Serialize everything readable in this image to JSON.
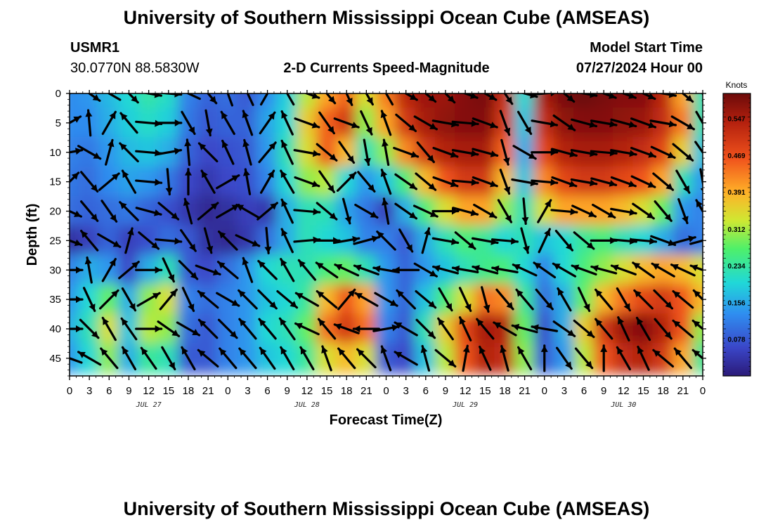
{
  "header": {
    "title": "University of Southern Mississippi Ocean Cube (AMSEAS)",
    "station": "USMR1",
    "coords": "30.0770N  88.5830W",
    "subtitle": "2-D Currents Speed-Magnitude",
    "model_start_label": "Model Start Time",
    "model_start_value": "07/27/2024 Hour 00"
  },
  "footer": {
    "title": "University of Southern Mississippi Ocean Cube (AMSEAS)"
  },
  "chart_data": {
    "type": "heatmap",
    "title": "2-D Currents Speed-Magnitude",
    "xlabel": "Forecast Time(Z)",
    "ylabel": "Depth (ft)",
    "x_tick_labels": [
      "0",
      "3",
      "6",
      "9",
      "12",
      "15",
      "18",
      "21",
      "0",
      "3",
      "6",
      "9",
      "12",
      "15",
      "18",
      "21",
      "0",
      "3",
      "6",
      "9",
      "12",
      "15",
      "18",
      "21",
      "0",
      "3",
      "6",
      "9",
      "12",
      "15",
      "18",
      "21",
      "0"
    ],
    "date_labels": [
      {
        "label": "JUL 27",
        "hour": 12
      },
      {
        "label": "JUL 28",
        "hour": 36
      },
      {
        "label": "JUL 29",
        "hour": 60
      },
      {
        "label": "JUL 30",
        "hour": 84
      }
    ],
    "x_range_hours": [
      0,
      96
    ],
    "y_ticks": [
      "0",
      "5",
      "10",
      "15",
      "20",
      "25",
      "30",
      "35",
      "40",
      "45"
    ],
    "y_range_ft": [
      0,
      48
    ],
    "colorbar": {
      "unit": "Knots",
      "tick_labels": [
        "0.547",
        "0.469",
        "0.391",
        "0.312",
        "0.234",
        "0.156",
        "0.078"
      ],
      "min": 0.0,
      "max": 0.6
    },
    "speed_grid": {
      "hours": [
        0,
        3,
        6,
        9,
        12,
        15,
        18,
        21,
        24,
        27,
        30,
        33,
        36,
        39,
        42,
        45,
        48,
        51,
        54,
        57,
        60,
        63,
        66,
        69,
        72,
        75,
        78,
        81,
        84,
        87,
        90,
        93,
        96
      ],
      "depths_ft": [
        0,
        5,
        10,
        15,
        20,
        25,
        30,
        35,
        40,
        45
      ],
      "values": [
        [
          0.13,
          0.14,
          0.17,
          0.2,
          0.23,
          0.21,
          0.12,
          0.09,
          0.1,
          0.08,
          0.13,
          0.19,
          0.32,
          0.4,
          0.45,
          0.34,
          0.43,
          0.53,
          0.56,
          0.56,
          0.58,
          0.59,
          0.52,
          0.2,
          0.55,
          0.59,
          0.6,
          0.59,
          0.58,
          0.58,
          0.53,
          0.4,
          0.22
        ],
        [
          0.13,
          0.13,
          0.16,
          0.19,
          0.21,
          0.19,
          0.11,
          0.08,
          0.09,
          0.09,
          0.15,
          0.2,
          0.36,
          0.45,
          0.5,
          0.3,
          0.4,
          0.5,
          0.55,
          0.57,
          0.58,
          0.58,
          0.5,
          0.18,
          0.52,
          0.57,
          0.58,
          0.58,
          0.57,
          0.56,
          0.52,
          0.43,
          0.22
        ],
        [
          0.12,
          0.11,
          0.14,
          0.17,
          0.18,
          0.16,
          0.09,
          0.06,
          0.07,
          0.08,
          0.14,
          0.22,
          0.34,
          0.46,
          0.38,
          0.22,
          0.3,
          0.42,
          0.5,
          0.54,
          0.55,
          0.55,
          0.45,
          0.16,
          0.48,
          0.54,
          0.55,
          0.55,
          0.54,
          0.52,
          0.48,
          0.36,
          0.18
        ],
        [
          0.11,
          0.1,
          0.13,
          0.15,
          0.14,
          0.11,
          0.06,
          0.04,
          0.06,
          0.07,
          0.12,
          0.2,
          0.3,
          0.32,
          0.2,
          0.14,
          0.18,
          0.26,
          0.38,
          0.46,
          0.5,
          0.5,
          0.38,
          0.18,
          0.42,
          0.48,
          0.5,
          0.5,
          0.48,
          0.46,
          0.4,
          0.22,
          0.14
        ],
        [
          0.1,
          0.09,
          0.1,
          0.11,
          0.09,
          0.07,
          0.04,
          0.02,
          0.03,
          0.05,
          0.04,
          0.16,
          0.22,
          0.22,
          0.15,
          0.11,
          0.05,
          0.16,
          0.26,
          0.34,
          0.4,
          0.4,
          0.3,
          0.22,
          0.34,
          0.4,
          0.4,
          0.4,
          0.38,
          0.34,
          0.28,
          0.14,
          0.12
        ],
        [
          0.03,
          0.05,
          0.09,
          0.05,
          0.07,
          0.1,
          0.08,
          0.03,
          0.02,
          0.04,
          0.1,
          0.16,
          0.22,
          0.2,
          0.18,
          0.12,
          0.12,
          0.08,
          0.16,
          0.22,
          0.26,
          0.24,
          0.2,
          0.22,
          0.18,
          0.2,
          0.24,
          0.26,
          0.22,
          0.2,
          0.16,
          0.1,
          0.12
        ],
        [
          0.12,
          0.16,
          0.14,
          0.06,
          0.16,
          0.22,
          0.08,
          0.06,
          0.1,
          0.14,
          0.2,
          0.22,
          0.22,
          0.26,
          0.28,
          0.22,
          0.14,
          0.09,
          0.14,
          0.18,
          0.22,
          0.25,
          0.26,
          0.2,
          0.12,
          0.2,
          0.26,
          0.3,
          0.34,
          0.38,
          0.4,
          0.38,
          0.34
        ],
        [
          0.14,
          0.2,
          0.28,
          0.16,
          0.3,
          0.34,
          0.12,
          0.1,
          0.12,
          0.14,
          0.18,
          0.2,
          0.24,
          0.38,
          0.46,
          0.4,
          0.14,
          0.09,
          0.18,
          0.26,
          0.34,
          0.44,
          0.42,
          0.24,
          0.1,
          0.16,
          0.28,
          0.38,
          0.44,
          0.48,
          0.5,
          0.46,
          0.38
        ],
        [
          0.16,
          0.22,
          0.34,
          0.18,
          0.32,
          0.3,
          0.1,
          0.08,
          0.12,
          0.14,
          0.2,
          0.22,
          0.28,
          0.44,
          0.5,
          0.44,
          0.12,
          0.08,
          0.22,
          0.36,
          0.48,
          0.55,
          0.54,
          0.28,
          0.07,
          0.16,
          0.36,
          0.5,
          0.56,
          0.58,
          0.54,
          0.46,
          0.3
        ],
        [
          0.14,
          0.2,
          0.3,
          0.16,
          0.24,
          0.22,
          0.08,
          0.08,
          0.12,
          0.14,
          0.18,
          0.2,
          0.24,
          0.34,
          0.38,
          0.34,
          0.08,
          0.06,
          0.18,
          0.32,
          0.46,
          0.54,
          0.52,
          0.3,
          0.08,
          0.14,
          0.32,
          0.46,
          0.52,
          0.54,
          0.5,
          0.4,
          0.24
        ]
      ]
    },
    "arrow_directions_deg": [
      [
        25,
        125,
        -60,
        135,
        100,
        95,
        -65,
        140,
        340,
        -25,
        30,
        -30,
        110,
        140,
        155,
        150,
        -30,
        120,
        130,
        135,
        110,
        120,
        145,
        105,
        85,
        130,
        100,
        110,
        110,
        115,
        100,
        130,
        160
      ],
      [
        60,
        -5,
        30,
        -40,
        95,
        90,
        150,
        170,
        -30,
        -20,
        35,
        -25,
        110,
        145,
        110,
        155,
        -20,
        130,
        120,
        100,
        95,
        110,
        160,
        150,
        100,
        125,
        105,
        100,
        105,
        110,
        100,
        120,
        150
      ],
      [
        80,
        120,
        15,
        -45,
        95,
        80,
        -5,
        -45,
        -25,
        -15,
        40,
        -25,
        100,
        130,
        145,
        170,
        -10,
        110,
        140,
        110,
        100,
        105,
        165,
        120,
        90,
        105,
        100,
        95,
        100,
        110,
        115,
        130,
        145
      ],
      [
        45,
        140,
        50,
        -30,
        95,
        175,
        0,
        -30,
        60,
        -10,
        30,
        -30,
        110,
        145,
        45,
        140,
        -20,
        125,
        130,
        110,
        95,
        110,
        160,
        100,
        95,
        110,
        100,
        105,
        110,
        115,
        130,
        150,
        170
      ],
      [
        115,
        140,
        145,
        -45,
        105,
        130,
        -15,
        50,
        60,
        -60,
        50,
        -25,
        95,
        130,
        165,
        120,
        -10,
        125,
        115,
        90,
        105,
        120,
        150,
        175,
        30,
        95,
        115,
        120,
        100,
        125,
        140,
        160,
        -30
      ],
      [
        110,
        -40,
        120,
        15,
        130,
        95,
        145,
        165,
        -45,
        115,
        175,
        -25,
        85,
        90,
        80,
        75,
        -45,
        150,
        15,
        100,
        130,
        100,
        95,
        165,
        25,
        140,
        130,
        90,
        95,
        95,
        110,
        75,
        75
      ],
      [
        90,
        -10,
        30,
        50,
        90,
        155,
        135,
        110,
        -50,
        -20,
        -45,
        -30,
        -40,
        -55,
        -65,
        -70,
        -80,
        -90,
        120,
        -75,
        -80,
        -75,
        -80,
        -65,
        -55,
        -60,
        -70,
        -75,
        -70,
        -55,
        -60,
        -65,
        -70
      ],
      [
        90,
        155,
        45,
        150,
        60,
        40,
        155,
        -50,
        120,
        -45,
        135,
        130,
        -60,
        -50,
        40,
        -60,
        120,
        -45,
        130,
        150,
        155,
        165,
        140,
        -40,
        140,
        -30,
        155,
        -40,
        150,
        -45,
        135,
        -50,
        -45
      ],
      [
        90,
        135,
        -30,
        -35,
        90,
        125,
        120,
        -45,
        135,
        -40,
        -40,
        -35,
        -65,
        -40,
        -70,
        -90,
        80,
        -60,
        135,
        -35,
        -25,
        -40,
        -60,
        -75,
        -80,
        125,
        130,
        -40,
        -25,
        -30,
        140,
        -50,
        -50
      ],
      [
        -70,
        -60,
        -40,
        -30,
        -35,
        150,
        -30,
        -50,
        -40,
        -40,
        -35,
        -30,
        -30,
        -20,
        -40,
        -45,
        -20,
        -60,
        -15,
        130,
        10,
        -25,
        -15,
        -30,
        0,
        145,
        140,
        0,
        -30,
        -25,
        -50,
        -40,
        -50
      ]
    ]
  }
}
